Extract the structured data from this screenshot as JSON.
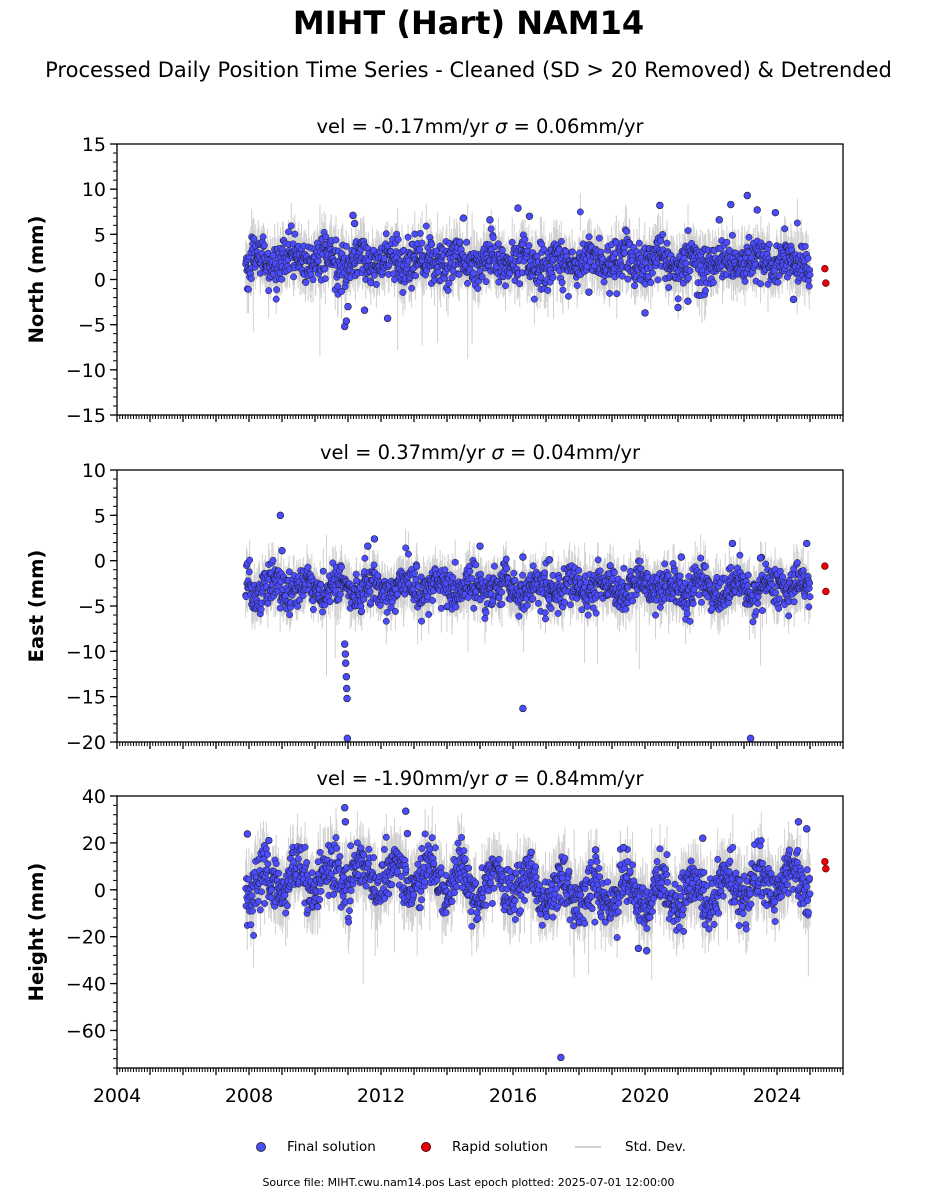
{
  "title": "MIHT (Hart) NAM14",
  "subtitle": "Processed Daily Position Time Series - Cleaned (SD > 20 Removed) & Detrended",
  "footer": "Source file: MIHT.cwu.nam14.pos  Last epoch plotted: 2025-07-01 12:00:00",
  "legend": {
    "final": "Final solution",
    "rapid": "Rapid solution",
    "std": "Std. Dev."
  },
  "colors": {
    "final": "#4b4bff",
    "final_edge": "#1a1a1a",
    "rapid": "#e8000b",
    "std": "#c8c8c8"
  },
  "chart_data": [
    {
      "type": "scatter",
      "title": "vel = -0.17mm/yr   σ = 0.06mm/yr",
      "ylabel": "North (mm)",
      "xlim": [
        2004,
        2026
      ],
      "ylim": [
        -15,
        15
      ],
      "yticks": [
        -15,
        -10,
        -5,
        0,
        5,
        10,
        15
      ],
      "xticks": [
        2004,
        2008,
        2012,
        2016,
        2020,
        2024
      ],
      "data_start": 2007.9,
      "data_end": 2025.0,
      "baseline_mean": 2.0,
      "noise_sd": 1.2,
      "outliers": [
        [
          2010.9,
          -5.2
        ],
        [
          2010.95,
          -4.6
        ],
        [
          2011.0,
          -3.0
        ],
        [
          2011.15,
          7.1
        ],
        [
          2011.2,
          6.2
        ],
        [
          2011.5,
          -3.4
        ],
        [
          2012.2,
          -4.3
        ],
        [
          2014.5,
          6.8
        ],
        [
          2015.3,
          6.6
        ],
        [
          2016.15,
          7.9
        ],
        [
          2016.5,
          7.0
        ],
        [
          2018.3,
          -1.4
        ],
        [
          2020.0,
          -3.7
        ],
        [
          2020.45,
          8.2
        ],
        [
          2021.0,
          -3.1
        ],
        [
          2021.3,
          -2.4
        ],
        [
          2022.25,
          6.6
        ],
        [
          2022.6,
          8.3
        ],
        [
          2023.1,
          9.3
        ],
        [
          2023.4,
          7.7
        ],
        [
          2023.95,
          7.4
        ],
        [
          2024.5,
          -2.2
        ]
      ],
      "rapid": [
        [
          2025.45,
          1.2
        ],
        [
          2025.48,
          -0.4
        ]
      ],
      "legend": [
        "Final solution",
        "Rapid solution",
        "Std. Dev."
      ]
    },
    {
      "type": "scatter",
      "title": "vel = 0.37mm/yr   σ = 0.04mm/yr",
      "ylabel": "East (mm)",
      "xlim": [
        2004,
        2026
      ],
      "ylim": [
        -20,
        10
      ],
      "yticks": [
        -20,
        -15,
        -10,
        -5,
        0,
        5,
        10
      ],
      "xticks": [
        2004,
        2008,
        2012,
        2016,
        2020,
        2024
      ],
      "data_start": 2007.9,
      "data_end": 2025.0,
      "baseline_mean": -3.0,
      "noise_sd": 1.1,
      "outliers": [
        [
          2008.95,
          5.0
        ],
        [
          2009.0,
          1.1
        ],
        [
          2010.9,
          -9.2
        ],
        [
          2010.92,
          -10.3
        ],
        [
          2010.93,
          -11.3
        ],
        [
          2010.95,
          -12.8
        ],
        [
          2010.96,
          -14.1
        ],
        [
          2010.97,
          -15.2
        ],
        [
          2010.98,
          -19.6
        ],
        [
          2011.8,
          2.4
        ],
        [
          2011.6,
          1.6
        ],
        [
          2015.0,
          1.6
        ],
        [
          2016.3,
          0.4
        ],
        [
          2016.3,
          -16.3
        ],
        [
          2017.1,
          0.1
        ],
        [
          2021.1,
          0.4
        ],
        [
          2022.65,
          1.9
        ],
        [
          2023.2,
          -19.6
        ],
        [
          2023.5,
          0.3
        ],
        [
          2024.9,
          1.9
        ]
      ],
      "rapid": [
        [
          2025.45,
          -0.6
        ],
        [
          2025.48,
          -3.4
        ]
      ],
      "legend": [
        "Final solution",
        "Rapid solution",
        "Std. Dev."
      ]
    },
    {
      "type": "scatter",
      "title": "vel = -1.90mm/yr   σ = 0.84mm/yr",
      "ylabel": "Height (mm)",
      "xlabel": "",
      "xlim": [
        2004,
        2026
      ],
      "ylim": [
        -76,
        40
      ],
      "yticks": [
        -60,
        -40,
        -20,
        0,
        20,
        40
      ],
      "xticks": [
        2004,
        2008,
        2012,
        2016,
        2020,
        2024
      ],
      "data_start": 2007.9,
      "data_end": 2025.0,
      "baseline_mean": 2.0,
      "noise_sd": 5.5,
      "outliers": [
        [
          2007.95,
          23.8
        ],
        [
          2008.6,
          21.0
        ],
        [
          2010.9,
          35.0
        ],
        [
          2010.92,
          29.0
        ],
        [
          2012.75,
          33.5
        ],
        [
          2012.8,
          24.0
        ],
        [
          2016.55,
          16.0
        ],
        [
          2017.45,
          -71.5
        ],
        [
          2018.5,
          17.0
        ],
        [
          2019.35,
          18.0
        ],
        [
          2019.8,
          -25.0
        ],
        [
          2020.05,
          -26.0
        ],
        [
          2021.75,
          22.0
        ],
        [
          2024.65,
          29.0
        ],
        [
          2024.9,
          26.0
        ]
      ],
      "rapid": [
        [
          2025.45,
          12.0
        ],
        [
          2025.48,
          9.0
        ]
      ],
      "legend": [
        "Final solution",
        "Rapid solution",
        "Std. Dev."
      ]
    }
  ]
}
